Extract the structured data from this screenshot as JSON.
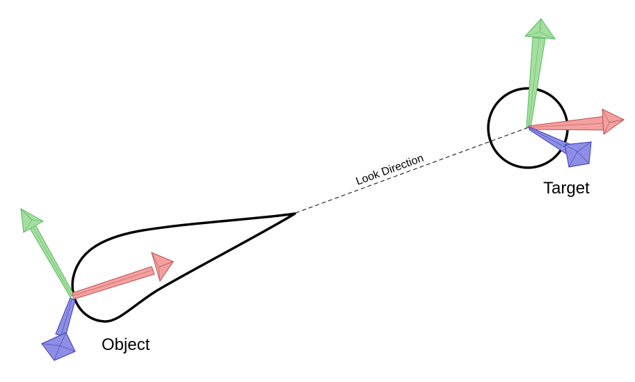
{
  "labels": {
    "object": "Object",
    "target": "Target",
    "look_direction": "Look Direction"
  },
  "colors": {
    "x_axis": "#f2a0a0",
    "y_axis": "#a4dfa0",
    "z_axis": "#8e8ee6",
    "outline": "#000000"
  }
}
